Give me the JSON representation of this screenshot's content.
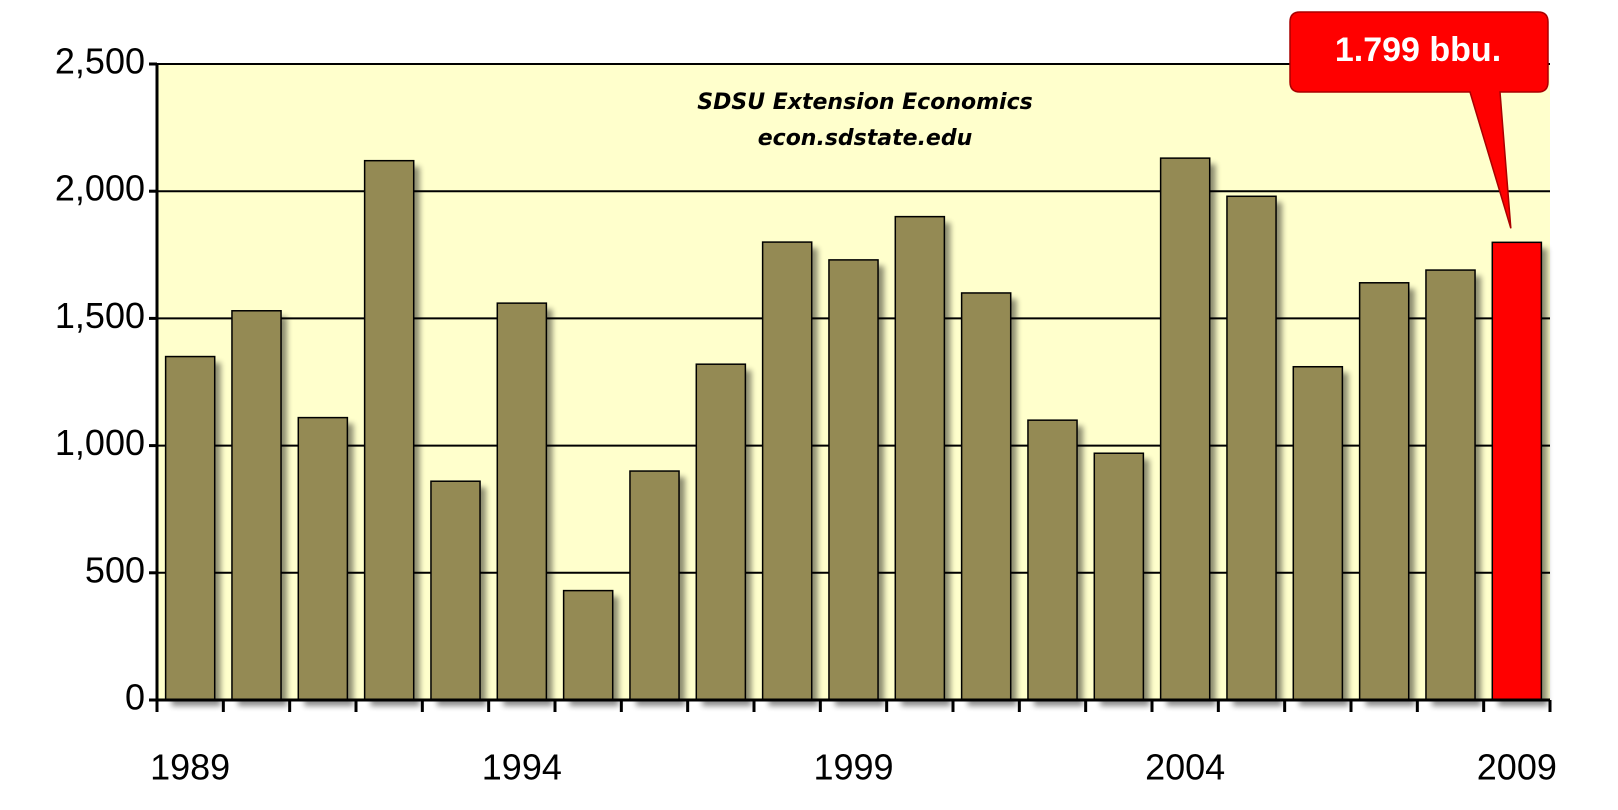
{
  "chart_data": {
    "type": "bar",
    "annotations": [
      "SDSU Extension  Economics",
      "econ.sdstate.edu"
    ],
    "categories": [
      "1989",
      null,
      null,
      null,
      null,
      "1994",
      null,
      null,
      null,
      null,
      "1999",
      null,
      null,
      null,
      null,
      "2004",
      null,
      null,
      null,
      null,
      "2009"
    ],
    "values": [
      1350,
      1530,
      1110,
      2120,
      860,
      1560,
      430,
      900,
      1320,
      1800,
      1730,
      1900,
      1600,
      1100,
      970,
      2130,
      1980,
      1310,
      1640,
      1690,
      1799
    ],
    "value_labels": [
      null,
      null,
      null,
      null,
      null,
      null,
      null,
      null,
      null,
      null,
      null,
      null,
      null,
      null,
      null,
      null,
      null,
      null,
      null,
      null,
      "1.799 bbu."
    ],
    "colors": [
      "#948a54",
      "#948a54",
      "#948a54",
      "#948a54",
      "#948a54",
      "#948a54",
      "#948a54",
      "#948a54",
      "#948a54",
      "#948a54",
      "#948a54",
      "#948a54",
      "#948a54",
      "#948a54",
      "#948a54",
      "#948a54",
      "#948a54",
      "#948a54",
      "#948a54",
      "#948a54",
      "#ff0000"
    ],
    "ylim": [
      0,
      2500
    ],
    "yticks": [
      0,
      500,
      {
        "value": 1000,
        "label": "1,000"
      },
      {
        "value": 1500,
        "label": "1,500"
      },
      {
        "value": 2000,
        "label": "2,000"
      },
      {
        "value": 2500,
        "label": "2,500"
      }
    ],
    "grid": true,
    "plot_background": "#ffffcc"
  }
}
